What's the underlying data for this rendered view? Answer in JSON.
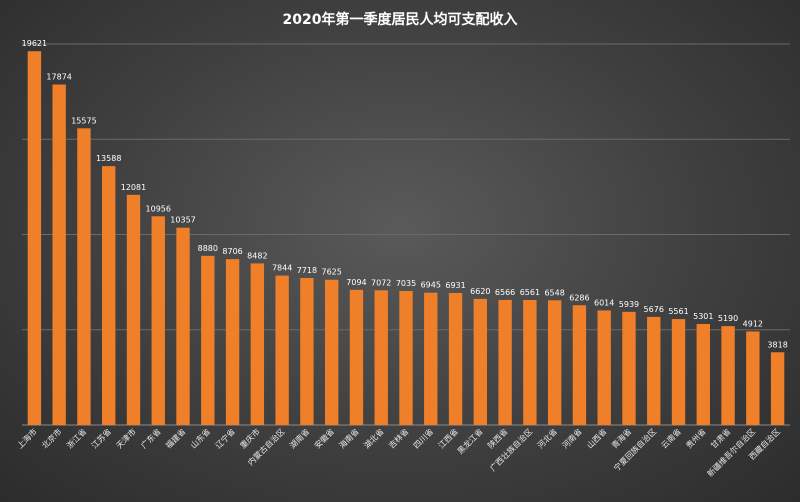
{
  "chart_data": {
    "type": "bar",
    "title": "2020年第一季度居民人均可支配收入",
    "xlabel": "",
    "ylabel": "",
    "ylim": [
      0,
      20000
    ],
    "grid": true,
    "categories": [
      "上海市",
      "北京市",
      "浙江省",
      "江苏省",
      "天津市",
      "广东省",
      "福建省",
      "山东省",
      "辽宁省",
      "重庆市",
      "内蒙古自治区",
      "湖南省",
      "安徽省",
      "海南省",
      "湖北省",
      "吉林省",
      "四川省",
      "江西省",
      "黑龙江省",
      "陕西省",
      "广西壮族自治区",
      "河北省",
      "河南省",
      "山西省",
      "青海省",
      "宁夏回族自治区",
      "云南省",
      "贵州省",
      "甘肃省",
      "新疆维吾尔自治区",
      "西藏自治区"
    ],
    "values": [
      19621,
      17874,
      15575,
      13588,
      12081,
      10956,
      10357,
      8880,
      8706,
      8482,
      7844,
      7718,
      7625,
      7094,
      7072,
      7035,
      6945,
      6931,
      6620,
      6566,
      6561,
      6548,
      6286,
      6014,
      5939,
      5676,
      5561,
      5301,
      5190,
      4912,
      3818
    ]
  },
  "colors": {
    "bar": "#f07f2a",
    "background": "#444444",
    "text": "#ffffff"
  }
}
